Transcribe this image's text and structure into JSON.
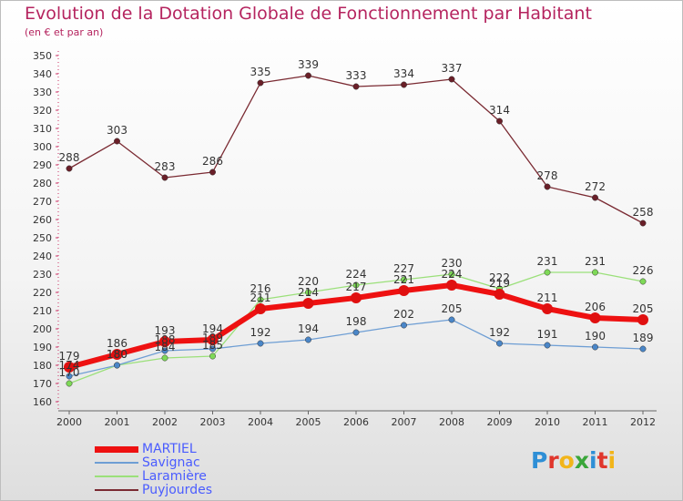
{
  "title": "Evolution de la Dotation Globale de Fonctionnement par Habitant",
  "subtitle": "(en € et par an)",
  "logo": {
    "letters": [
      {
        "ch": "P",
        "color": "#2e8fd6"
      },
      {
        "ch": "r",
        "color": "#e0362c"
      },
      {
        "ch": "o",
        "color": "#f2b51a"
      },
      {
        "ch": "x",
        "color": "#3aa63a"
      },
      {
        "ch": "i",
        "color": "#2e8fd6"
      },
      {
        "ch": "t",
        "color": "#e0362c"
      },
      {
        "ch": "i",
        "color": "#f2b51a"
      }
    ]
  },
  "chart_data": {
    "type": "line",
    "title": "Evolution de la Dotation Globale de Fonctionnement par Habitant",
    "subtitle": "(en € et par an)",
    "x": [
      "2000",
      "2001",
      "2002",
      "2003",
      "2004",
      "2005",
      "2006",
      "2007",
      "2008",
      "2009",
      "2010",
      "2011",
      "2012"
    ],
    "ylim": [
      160,
      350
    ],
    "ytick_step": 10,
    "grid": false,
    "legend_position": "bottom-left",
    "series": [
      {
        "name": "Puyjourdes",
        "color": "#7a2a32",
        "marker": "#6a1f28",
        "width": 1.3,
        "values": [
          288,
          303,
          283,
          286,
          335,
          339,
          333,
          334,
          337,
          314,
          278,
          272,
          258
        ]
      },
      {
        "name": "Laramière",
        "color": "#9be07a",
        "marker": "#7ed957",
        "width": 1.3,
        "values": [
          170,
          180,
          184,
          185,
          216,
          220,
          224,
          227,
          230,
          222,
          231,
          231,
          226
        ]
      },
      {
        "name": "Savignac",
        "color": "#6e9ed4",
        "marker": "#4a86c8",
        "width": 1.3,
        "values": [
          174,
          180,
          188,
          189,
          192,
          194,
          198,
          202,
          205,
          192,
          191,
          190,
          189
        ]
      },
      {
        "name": "MARTIEL",
        "color": "#ee1111",
        "marker": "#e01010",
        "width": 6,
        "values": [
          179,
          186,
          193,
          194,
          211,
          214,
          217,
          221,
          224,
          219,
          211,
          206,
          205
        ]
      }
    ],
    "legend_order": [
      "MARTIEL",
      "Savignac",
      "Laramière",
      "Puyjourdes"
    ]
  }
}
